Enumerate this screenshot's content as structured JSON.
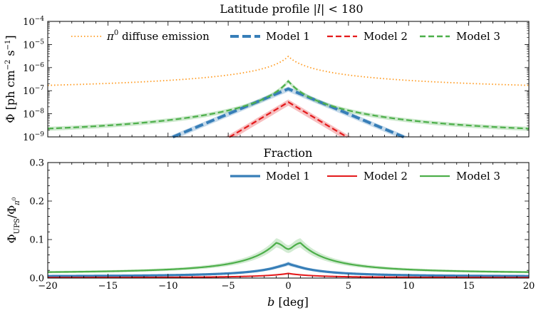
{
  "chart_data": [
    {
      "type": "line",
      "title_main": "Latitude profile |",
      "title_var": "l",
      "title_tail": "| < 180",
      "ylabel_main": "Φ [ph cm",
      "ylabel_exp1": "−2",
      "ylabel_mid": " s",
      "ylabel_exp2": "−1",
      "ylabel_tail": "]",
      "yscale": "log",
      "xlim": [
        -20,
        20
      ],
      "ylim_log10": [
        -9,
        -4
      ],
      "ytick_base": "10",
      "ytick_exponents": [
        "−9",
        "−8",
        "−7",
        "−6",
        "−5",
        "−4"
      ],
      "grid": false,
      "legend_position": "top",
      "series": [
        {
          "name_prefix": "π",
          "name_sup": "0",
          "name_rest": " diffuse emission",
          "style": "dotted",
          "color": "#ff9a1f",
          "peak": 3e-06,
          "scale": 1.5,
          "floor": 6e-08,
          "band": 0.0
        },
        {
          "name": "Model 1",
          "style": "dashed",
          "color": "#377eb8",
          "peak": 1.2e-07,
          "scale": 2.0,
          "floor": 0,
          "band": 0.25
        },
        {
          "name": "Model 2",
          "style": "dashed",
          "color": "#e41a1c",
          "peak": 3.2e-08,
          "scale": 1.4,
          "floor": 0,
          "band": 0.3
        },
        {
          "name": "Model 3",
          "style": "dashed",
          "color": "#4daf4a",
          "peak": 2.6e-07,
          "scale": 2.3,
          "floor": 1e-09,
          "band": 0.2
        }
      ]
    },
    {
      "type": "line",
      "title": "Fraction",
      "ylabel_main": "Φ",
      "ylabel_sub1": "UPS",
      "ylabel_mid": "/Φ",
      "ylabel_sub2": "π",
      "ylabel_sub2_sup": "0",
      "xlabel_var": "b",
      "xlabel_unit": " [deg]",
      "xlim": [
        -20,
        20
      ],
      "ylim": [
        0,
        0.3
      ],
      "xticks": [
        "−20",
        "−15",
        "−10",
        "−5",
        "0",
        "5",
        "10",
        "15",
        "20"
      ],
      "yticks": [
        "0.0",
        "0.1",
        "0.2",
        "0.3"
      ],
      "grid": false,
      "legend_position": "top-right",
      "series": [
        {
          "name": "Model 1",
          "color": "#377eb8",
          "peak": 0.04,
          "floor": 0.004,
          "width": 4.5
        },
        {
          "name": "Model 2",
          "color": "#e41a1c",
          "peak": 0.012,
          "floor": 0.001,
          "width": 4.5
        },
        {
          "name": "Model 3",
          "color": "#4daf4a",
          "peak": 0.092,
          "floor": 0.012,
          "width": 5.0
        }
      ]
    }
  ]
}
